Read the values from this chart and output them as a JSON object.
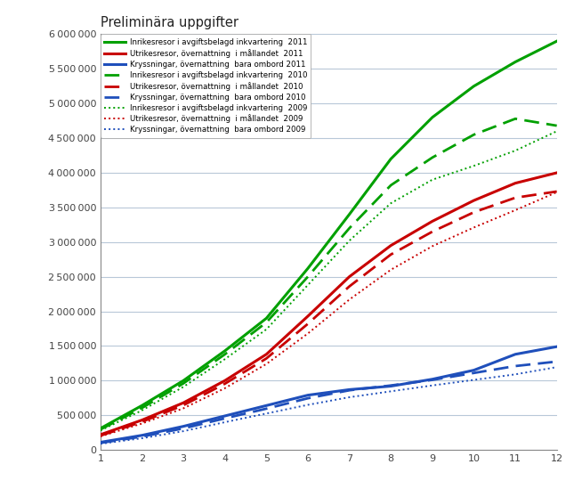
{
  "title": "Preliminära uppgifter",
  "x": [
    1,
    2,
    3,
    4,
    5,
    6,
    7,
    8,
    9,
    10,
    11,
    12
  ],
  "series": {
    "green_2011": [
      310000,
      640000,
      1000000,
      1430000,
      1900000,
      2620000,
      3400000,
      4200000,
      4800000,
      5250000,
      5600000,
      5900000
    ],
    "red_2011": [
      220000,
      430000,
      680000,
      1000000,
      1380000,
      1930000,
      2500000,
      2950000,
      3300000,
      3600000,
      3850000,
      4000000
    ],
    "blue_2011": [
      110000,
      210000,
      340000,
      490000,
      640000,
      790000,
      870000,
      920000,
      1020000,
      1150000,
      1380000,
      1490000
    ],
    "green_2010": [
      295000,
      605000,
      960000,
      1380000,
      1840000,
      2500000,
      3200000,
      3820000,
      4220000,
      4550000,
      4780000,
      4680000
    ],
    "red_2010": [
      205000,
      405000,
      645000,
      955000,
      1320000,
      1820000,
      2360000,
      2820000,
      3150000,
      3430000,
      3640000,
      3730000
    ],
    "blue_2010": [
      100000,
      192000,
      310000,
      455000,
      595000,
      745000,
      860000,
      930000,
      1010000,
      1110000,
      1210000,
      1275000
    ],
    "green_2009": [
      280000,
      570000,
      910000,
      1310000,
      1740000,
      2380000,
      3020000,
      3560000,
      3900000,
      4100000,
      4320000,
      4600000
    ],
    "red_2009": [
      195000,
      380000,
      600000,
      890000,
      1240000,
      1680000,
      2170000,
      2600000,
      2940000,
      3210000,
      3460000,
      3720000
    ],
    "blue_2009": [
      88000,
      168000,
      270000,
      400000,
      525000,
      650000,
      760000,
      845000,
      930000,
      1010000,
      1090000,
      1195000
    ]
  },
  "legend_labels": [
    "Inrikesresor i avgiftsbelagd inkvartering  2011",
    "Utrikesresor, övernattning  i mållandet  2011",
    "Kryssningar, övernattning  bara ombord 2011",
    "Inrikesresor i avgiftsbelagd inkvartering  2010",
    "Utrikesresor, övernattning  i mållandet  2010",
    "Kryssningar, övernattning  bara ombord 2010",
    "Inrikesresor i avgiftsbelagd inkvartering  2009",
    "Utrikesresor, övernattning  i mållandet  2009",
    "Kryssningar, övernattning  bara ombord 2009"
  ],
  "colors": {
    "green": "#00A000",
    "red": "#C80000",
    "blue": "#1F4FBB"
  },
  "ylim": [
    0,
    6000000
  ],
  "yticks": [
    0,
    500000,
    1000000,
    1500000,
    2000000,
    2500000,
    3000000,
    3500000,
    4000000,
    4500000,
    5000000,
    5500000,
    6000000
  ],
  "background_color": "#ffffff",
  "grid_color": "#b8c8d8"
}
